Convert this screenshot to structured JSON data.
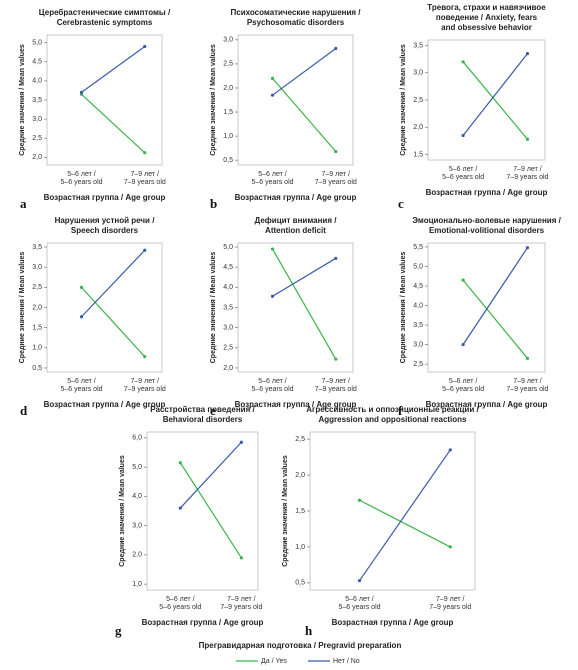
{
  "chart_data": [
    {
      "type": "line",
      "letter": "a",
      "title": [
        "Церебрастенические симптомы /",
        "Cerebrastenic symptoms"
      ],
      "categories": [
        [
          "5–6 лет /",
          "5–6 years old"
        ],
        [
          "7–9 лет /",
          "7–9 years old"
        ]
      ],
      "x_label": "Возрастная группа / Age group",
      "y_label": "Средние значения / Mean values",
      "ylim": [
        1.8,
        5.2
      ],
      "yticks": [
        {
          "value": 2,
          "label": "2,0"
        },
        {
          "value": 2.5,
          "label": "2,5"
        },
        {
          "value": 3,
          "label": "3,0"
        },
        {
          "value": 3.5,
          "label": "3,5"
        },
        {
          "value": 4,
          "label": "4,0"
        },
        {
          "value": 4.5,
          "label": "4,5"
        },
        {
          "value": 5,
          "label": "5,0"
        }
      ],
      "series": [
        {
          "name": "Да / Yes",
          "color": "#3bb54a",
          "values": [
            3.65,
            2.12
          ]
        },
        {
          "name": "Нет / No",
          "color": "#3a5ba8",
          "values": [
            3.7,
            4.9
          ]
        }
      ]
    },
    {
      "type": "line",
      "letter": "b",
      "title": [
        "Психосоматические нарушения /",
        "Psychosomatic disorders"
      ],
      "categories": [
        [
          "5–6 лет /",
          "5–6 years old"
        ],
        [
          "7–9 лет /",
          "7–9 years old"
        ]
      ],
      "x_label": "Возрастная группа / Age group",
      "y_label": "Средние значения / Mean values",
      "ylim": [
        0.4,
        3.1
      ],
      "yticks": [
        {
          "value": 0.5,
          "label": "0,5"
        },
        {
          "value": 1,
          "label": "1,0"
        },
        {
          "value": 1.5,
          "label": "1,5"
        },
        {
          "value": 2,
          "label": "2,0"
        },
        {
          "value": 2.5,
          "label": "2,5"
        },
        {
          "value": 3,
          "label": "3,0"
        }
      ],
      "series": [
        {
          "name": "Да / Yes",
          "color": "#3bb54a",
          "values": [
            2.2,
            0.68
          ]
        },
        {
          "name": "Нет / No",
          "color": "#3a5ba8",
          "values": [
            1.85,
            2.82
          ]
        }
      ]
    },
    {
      "type": "line",
      "letter": "c",
      "title": [
        "Тревога, страхи и навязчивое",
        "поведение / Anxiety, fears",
        "and obsessive behavior"
      ],
      "categories": [
        [
          "5–6 лет /",
          "5–6 years old"
        ],
        [
          "7–9 лет /",
          "7–9 years old"
        ]
      ],
      "x_label": "Возрастная группа / Age group",
      "y_label": "Средние значения / Mean values",
      "ylim": [
        1.4,
        3.6
      ],
      "yticks": [
        {
          "value": 1.5,
          "label": "1,5"
        },
        {
          "value": 2,
          "label": "2,0"
        },
        {
          "value": 2.5,
          "label": "2,5"
        },
        {
          "value": 3,
          "label": "3,0"
        },
        {
          "value": 3.5,
          "label": "3,5"
        }
      ],
      "series": [
        {
          "name": "Да / Yes",
          "color": "#3bb54a",
          "values": [
            3.2,
            1.78
          ]
        },
        {
          "name": "Нет / No",
          "color": "#3a5ba8",
          "values": [
            1.85,
            3.35
          ]
        }
      ]
    },
    {
      "type": "line",
      "letter": "d",
      "title": [
        "Нарушения устной речи /",
        "Speech disorders"
      ],
      "categories": [
        [
          "5–6 лет /",
          "5–6 years old"
        ],
        [
          "7–9 лет /",
          "7–9 years old"
        ]
      ],
      "x_label": "Возрастная группа / Age group",
      "y_label": "Средние значения / Mean values",
      "ylim": [
        0.4,
        3.6
      ],
      "yticks": [
        {
          "value": 0.5,
          "label": "0,5"
        },
        {
          "value": 1,
          "label": "1,0"
        },
        {
          "value": 1.5,
          "label": "1,5"
        },
        {
          "value": 2,
          "label": "2,0"
        },
        {
          "value": 2.5,
          "label": "2,5"
        },
        {
          "value": 3,
          "label": "3,0"
        },
        {
          "value": 3.5,
          "label": "3,5"
        }
      ],
      "series": [
        {
          "name": "Да / Yes",
          "color": "#3bb54a",
          "values": [
            2.5,
            0.78
          ]
        },
        {
          "name": "Нет / No",
          "color": "#3a5ba8",
          "values": [
            1.77,
            3.42
          ]
        }
      ]
    },
    {
      "type": "line",
      "letter": "e",
      "title": [
        "Дефицит внимания /",
        "Attention deficit"
      ],
      "categories": [
        [
          "5–6 лет /",
          "5–6 years old"
        ],
        [
          "7–9 лет /",
          "7–9 years old"
        ]
      ],
      "x_label": "Возрастная группа / Age group",
      "y_label": "Средние значения / Mean values",
      "ylim": [
        1.9,
        5.1
      ],
      "yticks": [
        {
          "value": 2,
          "label": "2,0"
        },
        {
          "value": 2.5,
          "label": "2,5"
        },
        {
          "value": 3,
          "label": "3,0"
        },
        {
          "value": 3.5,
          "label": "3,5"
        },
        {
          "value": 4,
          "label": "4,0"
        },
        {
          "value": 4.5,
          "label": "4,5"
        },
        {
          "value": 5,
          "label": "5,0"
        }
      ],
      "series": [
        {
          "name": "Да / Yes",
          "color": "#3bb54a",
          "values": [
            4.95,
            2.22
          ]
        },
        {
          "name": "Нет / No",
          "color": "#3a5ba8",
          "values": [
            3.78,
            4.72
          ]
        }
      ]
    },
    {
      "type": "line",
      "letter": "f",
      "title": [
        "Эмоционально-волевые нарушения /",
        "Emotional-volitional disorders"
      ],
      "categories": [
        [
          "5–6 лет /",
          "5–6 years old"
        ],
        [
          "7–9 лет /",
          "7–9 years old"
        ]
      ],
      "x_label": "Возрастная группа / Age group",
      "y_label": "Средние значения / Mean values",
      "ylim": [
        2.3,
        5.6
      ],
      "yticks": [
        {
          "value": 2.5,
          "label": "2,5"
        },
        {
          "value": 3,
          "label": "3,0"
        },
        {
          "value": 3.5,
          "label": "3,5"
        },
        {
          "value": 4,
          "label": "4,0"
        },
        {
          "value": 4.5,
          "label": "4,5"
        },
        {
          "value": 5,
          "label": "5,0"
        },
        {
          "value": 5.5,
          "label": "5,5"
        }
      ],
      "series": [
        {
          "name": "Да / Yes",
          "color": "#3bb54a",
          "values": [
            4.65,
            2.65
          ]
        },
        {
          "name": "Нет / No",
          "color": "#3a5ba8",
          "values": [
            3.0,
            5.48
          ]
        }
      ]
    },
    {
      "type": "line",
      "letter": "g",
      "title": [
        "Расстройства поведения /",
        "Behavioral disorders"
      ],
      "categories": [
        [
          "5–6 лет /",
          "5–6 years old"
        ],
        [
          "7–9 лет /",
          "7–9 years old"
        ]
      ],
      "x_label": "Возрастная группа / Age group",
      "y_label": "Средние значения / Mean values",
      "ylim": [
        0.8,
        6.2
      ],
      "yticks": [
        {
          "value": 1,
          "label": "1,0"
        },
        {
          "value": 2,
          "label": "2,0"
        },
        {
          "value": 3,
          "label": "3,0"
        },
        {
          "value": 4,
          "label": "4,0"
        },
        {
          "value": 5,
          "label": "5,0"
        },
        {
          "value": 6,
          "label": "6,0"
        }
      ],
      "series": [
        {
          "name": "Да / Yes",
          "color": "#3bb54a",
          "values": [
            5.15,
            1.9
          ]
        },
        {
          "name": "Нет / No",
          "color": "#3a5ba8",
          "values": [
            3.6,
            5.85
          ]
        }
      ]
    },
    {
      "type": "line",
      "letter": "h",
      "title": [
        "Агрессивность и оппозиционные реакции /",
        "Aggression and oppositional reactions"
      ],
      "categories": [
        [
          "5–6 лет /",
          "5–6 years old"
        ],
        [
          "7–9 лет /",
          "7–9 years old"
        ]
      ],
      "x_label": "Возрастная группа / Age group",
      "y_label": "Средние значения / Mean values",
      "ylim": [
        0.4,
        2.6
      ],
      "yticks": [
        {
          "value": 0.5,
          "label": "0,5"
        },
        {
          "value": 1,
          "label": "1,0"
        },
        {
          "value": 1.5,
          "label": "1,5"
        },
        {
          "value": 2,
          "label": "2,0"
        },
        {
          "value": 2.5,
          "label": "2,5"
        }
      ],
      "series": [
        {
          "name": "Да / Yes",
          "color": "#3bb54a",
          "values": [
            1.65,
            1.0
          ]
        },
        {
          "name": "Нет / No",
          "color": "#3a5ba8",
          "values": [
            0.53,
            2.35
          ]
        }
      ]
    }
  ],
  "legend_title": "Прегравидарная подготовка / Pregravid preparation"
}
